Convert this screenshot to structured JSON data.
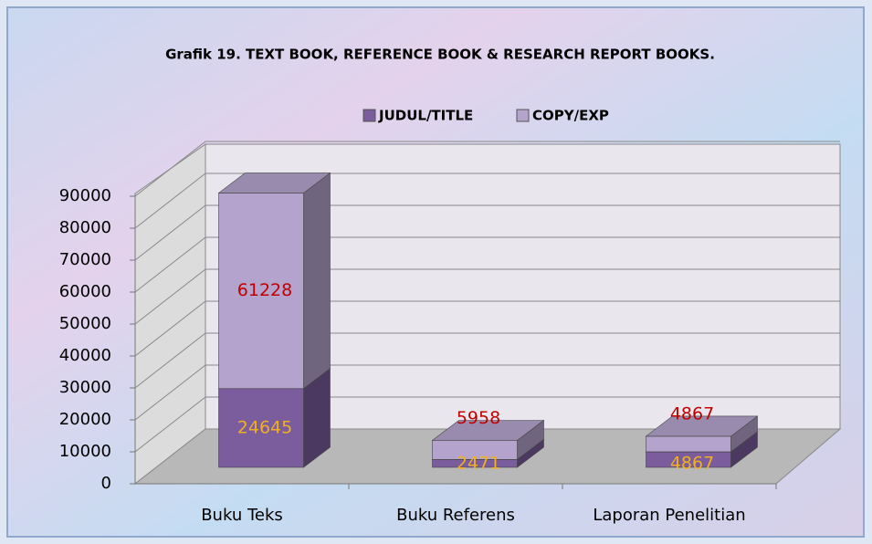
{
  "chart_data": {
    "type": "bar3d_stacked",
    "title": "Grafik 19. TEXT BOOK, REFERENCE BOOK & RESEARCH REPORT BOOKS.",
    "categories": [
      "Buku Teks",
      "Buku Referens",
      "Laporan Penelitian"
    ],
    "series": [
      {
        "name": "JUDUL/TITLE",
        "color": "#7b5c9c",
        "label_color": "#f0b020",
        "values": [
          24645,
          2471,
          4867
        ]
      },
      {
        "name": "COPY/EXP",
        "color": "#b4a3cc",
        "label_color": "#c00000",
        "values": [
          61228,
          5958,
          4867
        ]
      }
    ],
    "ylim": [
      0,
      90000
    ],
    "yticks": [
      0,
      10000,
      20000,
      30000,
      40000,
      50000,
      60000,
      70000,
      80000,
      90000
    ],
    "grid": true,
    "legend": "top"
  }
}
